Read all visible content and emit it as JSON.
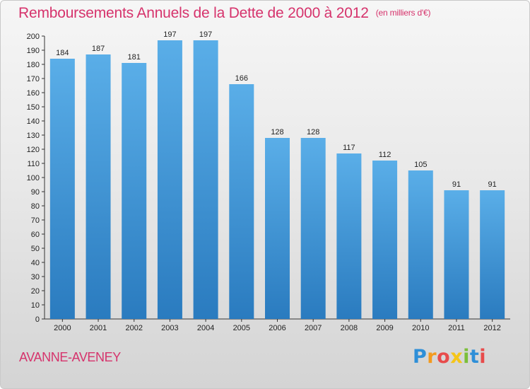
{
  "chart_data": {
    "type": "bar",
    "title": "Remboursements Annuels de la Dette de 2000 à 2012",
    "subtitle": "(en milliers d'€)",
    "categories": [
      "2000",
      "2001",
      "2002",
      "2003",
      "2004",
      "2005",
      "2006",
      "2007",
      "2008",
      "2009",
      "2010",
      "2011",
      "2012"
    ],
    "values": [
      184,
      187,
      181,
      197,
      197,
      166,
      128,
      128,
      117,
      112,
      105,
      91,
      91
    ],
    "ylim": [
      0,
      200
    ],
    "ytick_step": 10,
    "grid": false,
    "bar_color_top": "#5aaee8",
    "bar_color_bottom": "#2a7bbf"
  },
  "footer": {
    "town": "AVANNE-AVENEY",
    "logo_letters": [
      "P",
      "r",
      "o",
      "x",
      "i",
      "t",
      "i"
    ]
  }
}
